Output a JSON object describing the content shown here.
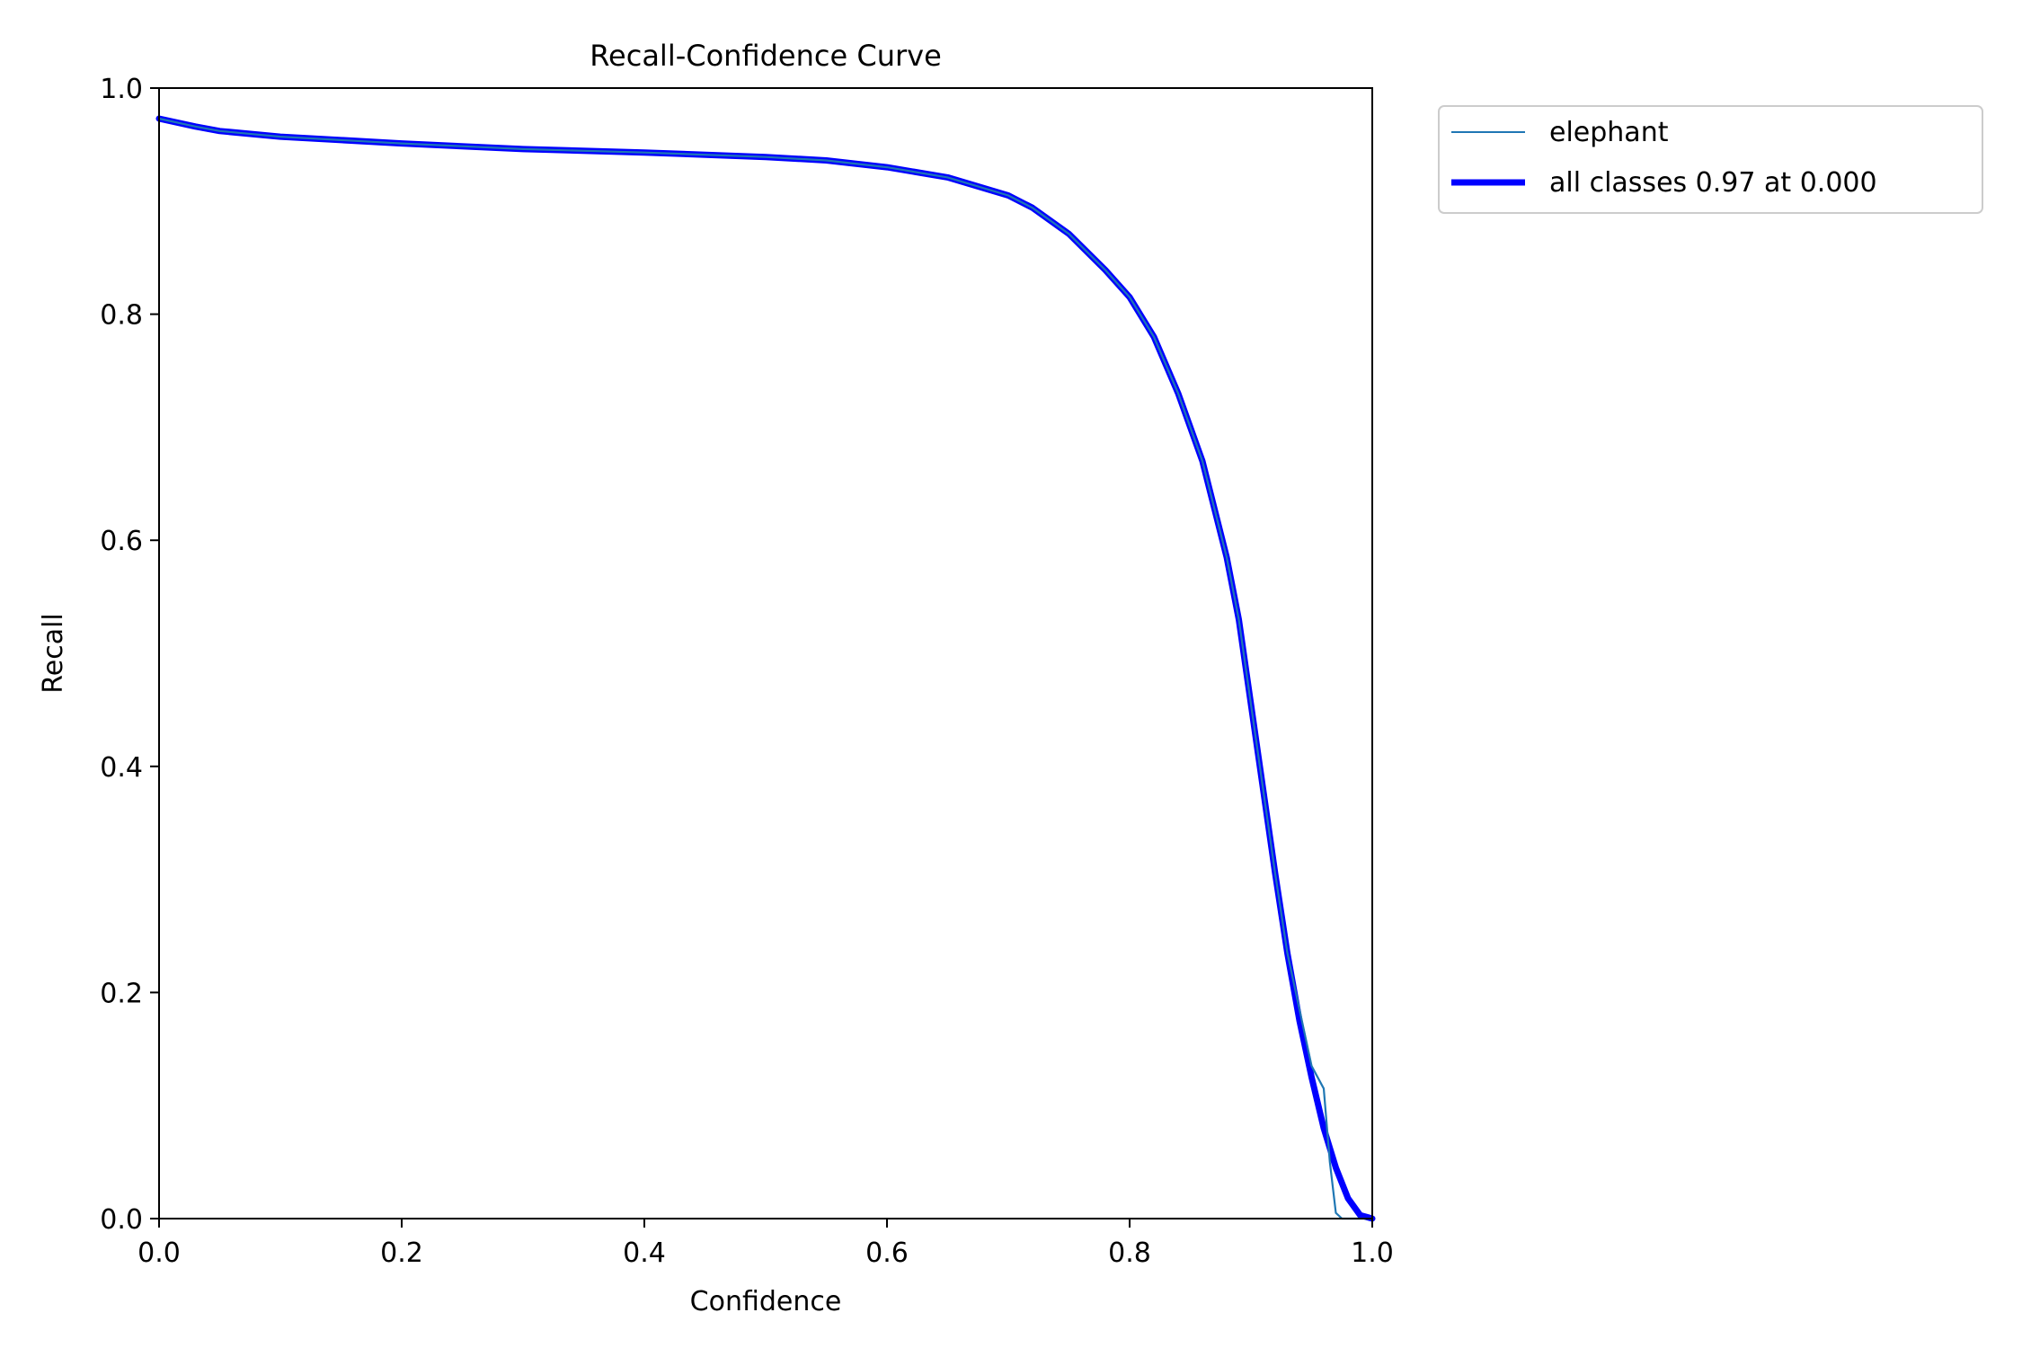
{
  "chart_data": {
    "type": "line",
    "title": "Recall-Confidence Curve",
    "xlabel": "Confidence",
    "ylabel": "Recall",
    "xlim": [
      0.0,
      1.0
    ],
    "ylim": [
      0.0,
      1.0
    ],
    "xticks": [
      "0.0",
      "0.2",
      "0.4",
      "0.6",
      "0.8",
      "1.0"
    ],
    "yticks": [
      "0.0",
      "0.2",
      "0.4",
      "0.6",
      "0.8",
      "1.0"
    ],
    "grid": false,
    "legend_position": "outside top-right",
    "series": [
      {
        "name": "elephant",
        "color": "#1f77b4",
        "style": "thin",
        "x": [
          0.0,
          0.03,
          0.05,
          0.1,
          0.2,
          0.3,
          0.4,
          0.5,
          0.55,
          0.6,
          0.65,
          0.7,
          0.72,
          0.75,
          0.78,
          0.8,
          0.82,
          0.84,
          0.86,
          0.88,
          0.89,
          0.9,
          0.92,
          0.93,
          0.94,
          0.95,
          0.96,
          0.965,
          0.97,
          0.975,
          0.98,
          0.99,
          1.0
        ],
        "y": [
          0.973,
          0.966,
          0.962,
          0.957,
          0.951,
          0.946,
          0.943,
          0.939,
          0.936,
          0.93,
          0.921,
          0.905,
          0.894,
          0.871,
          0.839,
          0.815,
          0.78,
          0.73,
          0.67,
          0.585,
          0.53,
          0.455,
          0.305,
          0.235,
          0.185,
          0.135,
          0.115,
          0.05,
          0.005,
          0.0,
          0.0,
          0.0,
          0.0
        ]
      },
      {
        "name": "all classes 0.97 at 0.000",
        "color": "#0000ff",
        "style": "thick",
        "x": [
          0.0,
          0.03,
          0.05,
          0.1,
          0.2,
          0.3,
          0.4,
          0.5,
          0.55,
          0.6,
          0.65,
          0.7,
          0.72,
          0.75,
          0.78,
          0.8,
          0.82,
          0.84,
          0.86,
          0.88,
          0.89,
          0.9,
          0.92,
          0.93,
          0.94,
          0.95,
          0.96,
          0.97,
          0.98,
          0.99,
          1.0
        ],
        "y": [
          0.973,
          0.966,
          0.962,
          0.957,
          0.951,
          0.946,
          0.943,
          0.939,
          0.936,
          0.93,
          0.921,
          0.905,
          0.894,
          0.871,
          0.839,
          0.815,
          0.78,
          0.73,
          0.67,
          0.585,
          0.53,
          0.455,
          0.305,
          0.235,
          0.175,
          0.125,
          0.08,
          0.045,
          0.018,
          0.003,
          0.0
        ]
      }
    ]
  }
}
